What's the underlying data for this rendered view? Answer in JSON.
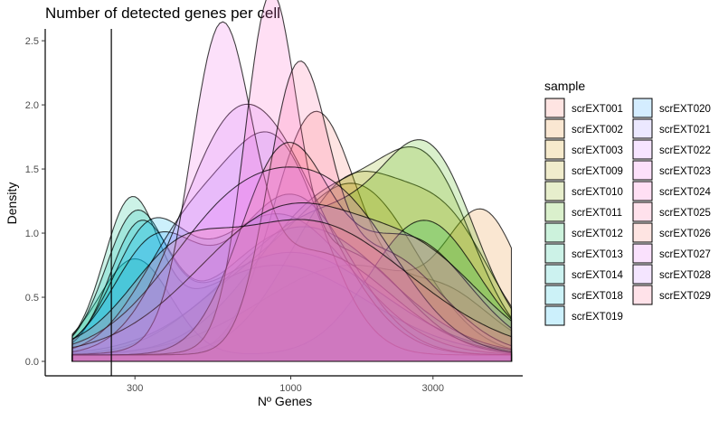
{
  "chart_data": {
    "type": "area",
    "title": "Number of detected genes per cell",
    "xlabel": "Nº Genes",
    "ylabel": "Density",
    "x_scale": "log10",
    "xlim": [
      150,
      6000
    ],
    "ylim": [
      0,
      2.55
    ],
    "x_ticks": [
      300,
      1000,
      3000
    ],
    "x_tick_labels": [
      "300",
      "1000",
      "3000"
    ],
    "y_ticks": [
      0,
      0.5,
      1,
      1.5,
      2,
      2.5
    ],
    "y_tick_labels": [
      "0.0",
      "0.5",
      "1.0",
      "1.5",
      "2.0",
      "2.5"
    ],
    "threshold_line_x": 250,
    "legend_title": "sample",
    "legend_position": "right",
    "grid": false,
    "fill_opacity": 0.2,
    "series": [
      {
        "name": "scrEXT001",
        "color": "#F8766D",
        "peaks": [
          [
            1200,
            1.85,
            0.14
          ],
          [
            3000,
            0.55,
            0.18
          ]
        ]
      },
      {
        "name": "scrEXT002",
        "color": "#E7851E",
        "peaks": [
          [
            4500,
            0.9,
            0.12
          ],
          [
            1600,
            0.7,
            0.3
          ]
        ]
      },
      {
        "name": "scrEXT003",
        "color": "#D09400",
        "peaks": [
          [
            1700,
            1.25,
            0.2
          ],
          [
            700,
            0.5,
            0.2
          ]
        ]
      },
      {
        "name": "scrEXT009",
        "color": "#B2A100",
        "peaks": [
          [
            1600,
            1.35,
            0.2
          ],
          [
            3500,
            0.8,
            0.15
          ]
        ]
      },
      {
        "name": "scrEXT010",
        "color": "#89AC00",
        "peaks": [
          [
            1400,
            1.25,
            0.25
          ],
          [
            3000,
            1.0,
            0.15
          ]
        ]
      },
      {
        "name": "scrEXT011",
        "color": "#45B500",
        "peaks": [
          [
            1300,
            1.1,
            0.3
          ],
          [
            3000,
            1.1,
            0.15
          ]
        ]
      },
      {
        "name": "scrEXT012",
        "color": "#00BC51",
        "peaks": [
          [
            2800,
            1.05,
            0.18
          ],
          [
            300,
            0.75,
            0.12
          ]
        ]
      },
      {
        "name": "scrEXT013",
        "color": "#00C087",
        "peaks": [
          [
            290,
            1.05,
            0.09
          ],
          [
            900,
            0.7,
            0.3
          ]
        ]
      },
      {
        "name": "scrEXT014",
        "color": "#00C0B2",
        "peaks": [
          [
            300,
            0.95,
            0.1
          ],
          [
            1000,
            0.8,
            0.3
          ]
        ]
      },
      {
        "name": "scrEXT018",
        "color": "#00BCD6",
        "peaks": [
          [
            310,
            0.9,
            0.1
          ],
          [
            1100,
            1.0,
            0.28
          ]
        ]
      },
      {
        "name": "scrEXT019",
        "color": "#00B3F2",
        "peaks": [
          [
            330,
            0.8,
            0.12
          ],
          [
            900,
            1.1,
            0.25
          ]
        ]
      },
      {
        "name": "scrEXT020",
        "color": "#29A3FF",
        "peaks": [
          [
            350,
            0.85,
            0.14
          ],
          [
            1000,
            1.25,
            0.2
          ]
        ]
      },
      {
        "name": "scrEXT021",
        "color": "#9C8DFF",
        "peaks": [
          [
            450,
            0.9,
            0.16
          ],
          [
            900,
            1.55,
            0.16
          ]
        ]
      },
      {
        "name": "scrEXT022",
        "color": "#D277FF",
        "peaks": [
          [
            600,
            1.3,
            0.18
          ],
          [
            1000,
            1.0,
            0.2
          ]
        ]
      },
      {
        "name": "scrEXT023",
        "color": "#F166E8",
        "peaks": [
          [
            580,
            2.23,
            0.1
          ],
          [
            1200,
            0.8,
            0.25
          ]
        ]
      },
      {
        "name": "scrEXT024",
        "color": "#FF61C7",
        "peaks": [
          [
            850,
            2.45,
            0.085
          ],
          [
            1500,
            0.8,
            0.2
          ]
        ]
      },
      {
        "name": "scrEXT025",
        "color": "#FF689E",
        "peaks": [
          [
            1050,
            1.98,
            0.1
          ],
          [
            2000,
            0.8,
            0.2
          ]
        ]
      },
      {
        "name": "scrEXT026",
        "color": "#F8766D",
        "peaks": [
          [
            950,
            1.55,
            0.15
          ],
          [
            2500,
            0.9,
            0.2
          ]
        ]
      },
      {
        "name": "scrEXT027",
        "color": "#E76BF3",
        "peaks": [
          [
            700,
            1.2,
            0.25
          ],
          [
            1600,
            0.8,
            0.2
          ]
        ]
      },
      {
        "name": "scrEXT028",
        "color": "#C77CFF",
        "peaks": [
          [
            1000,
            1.15,
            0.3
          ],
          [
            3000,
            0.5,
            0.2
          ]
        ]
      },
      {
        "name": "scrEXT029",
        "color": "#FF6C91",
        "peaks": [
          [
            1100,
            1.05,
            0.35
          ],
          [
            400,
            0.4,
            0.15
          ]
        ]
      }
    ]
  }
}
